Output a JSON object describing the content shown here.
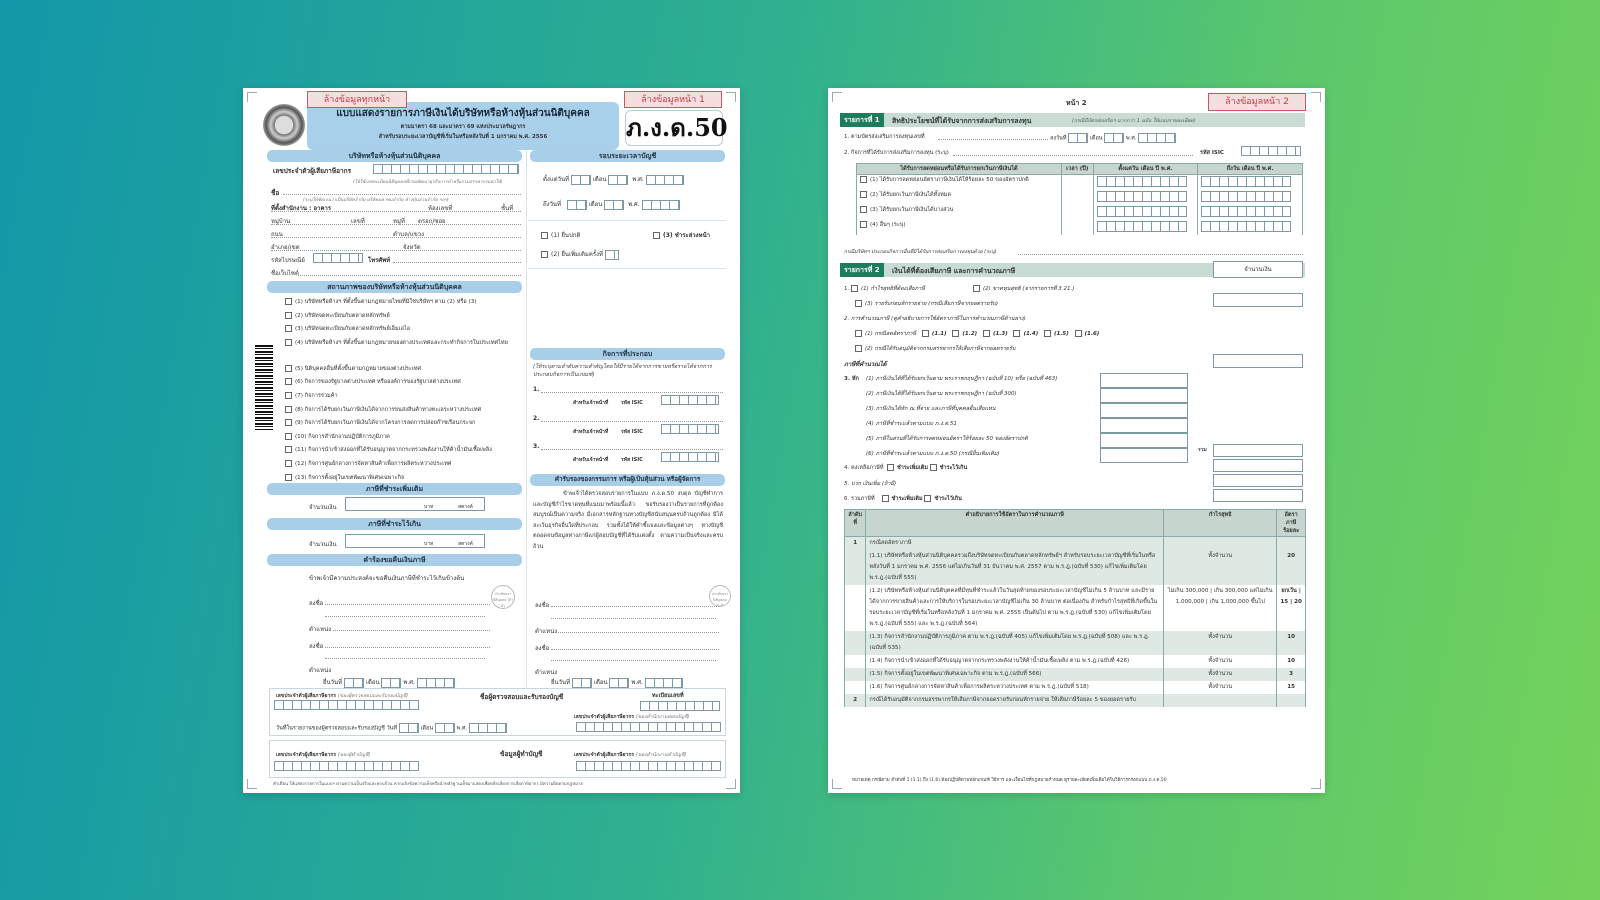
{
  "background": {
    "gradient_start": "#1397a9",
    "gradient_end": "#74d25a"
  },
  "page1": {
    "clear_all_button": "ล้างข้อมูลทุกหน้า",
    "clear_page_button": "ล้างข้อมูลหน้า 1",
    "title": "แบบแสดงรายการภาษีเงินได้บริษัทหรือห้างหุ้นส่วนนิติบุคคล",
    "subtitle": "ตามมาตรา 68 และมาตรา 69 แห่งประมวลรัษฎากร",
    "subtitle2": "สำหรับรอบระยะเวลาบัญชีที่เริ่มในหรือหลังวันที่ 1 มกราคม พ.ศ. 2556",
    "form_code": "ภ.ง.ด.50",
    "company": {
      "header": "บริษัทหรือห้างหุ้นส่วนนิติบุคคล",
      "tax_id_label": "เลขประจำตัวผู้เสียภาษีอากร",
      "tax_id_note": "(ให้ใช้เลขทะเบียนนิติบุคคลที่กรมพัฒนาธุรกิจการค้าหรือกรมสรรพากรออกให้)",
      "name_label": "ชื่อ",
      "name_note": "(ระบุให้ชัดเจนว่าเป็นบริษัทจำกัด บริษัทมหาชนจำกัด ห้างหุ้นส่วนจำกัด ฯลฯ)",
      "office_label": "ที่ตั้งสำนักงาน : อาคาร",
      "room_label": "ห้องเลขที่",
      "floor_label": "ชั้นที่",
      "village_label": "หมู่บ้าน",
      "house_no_label": "เลขที่",
      "moo_label": "หมู่ที่",
      "soi_label": "ตรอก/ซอย",
      "road_label": "ถนน",
      "subdistrict_label": "ตำบล/แขวง",
      "district_label": "อำเภอ/เขต",
      "province_label": "จังหวัด",
      "postcode_label": "รหัสไปรษณีย์",
      "phone_label": "โทรศัพท์",
      "website_label": "ชื่อเว็บไซต์"
    },
    "status": {
      "header": "สถานภาพของบริษัทหรือห้างหุ้นส่วนนิติบุคคล",
      "items": [
        "(1) บริษัทหรือห้างฯ ที่ตั้งขึ้นตามกฎหมายไทยที่มิใช่บริษัทฯ ตาม (2) หรือ (3)",
        "(2) บริษัทจดทะเบียนกับตลาดหลักทรัพย์",
        "(3) บริษัทจดทะเบียนกับตลาดหลักทรัพย์เอ็มเอไอ",
        "(4) บริษัทหรือห้างฯ ที่ตั้งขึ้นตามกฎหมายของต่างประเทศและกระทำกิจการในประเทศไทย",
        "(5) นิติบุคคลอื่นที่ตั้งขึ้นตามกฎหมายของต่างประเทศ",
        "(6) กิจการของรัฐบาลต่างประเทศ หรือองค์การของรัฐบาลต่างประเทศ",
        "(7) กิจการร่วมค้า",
        "(8) กิจการได้รับยกเว้นภาษีเงินได้จากการขนส่งสินค้าทางทะเลระหว่างประเทศ",
        "(9) กิจการได้รับยกเว้นภาษีเงินได้จากโครงการลดการปล่อยก๊าซเรือนกระจก",
        "(10) กิจการสำนักงานปฏิบัติการภูมิภาค",
        "(11) กิจการนำเข้าส่งออกที่ได้รับอนุญาตจากกระทรวงพลังงานให้ค้าน้ำมันเชื้อเพลิง",
        "(12) กิจการศูนย์กลางการจัดหาสินค้าเพื่อการผลิตระหว่างประเทศ",
        "(13) กิจการตั้งอยู่ในเขตพัฒนาพิเศษเฉพาะกิจ"
      ]
    },
    "additional_tax": {
      "header": "ภาษีที่ชำระเพิ่มเติม",
      "amount_label": "จำนวนเงิน",
      "baht": "บาท",
      "satang": "สตางค์"
    },
    "overpaid_tax": {
      "header": "ภาษีที่ชำระไว้เกิน",
      "amount_label": "จำนวนเงิน",
      "baht": "บาท",
      "satang": "สตางค์"
    },
    "refund": {
      "header": "คำร้องขอคืนเงินภาษี",
      "text": "ข้าพเจ้ามีความประสงค์จะขอคืนเงินภาษีที่ชำระไว้เกินข้างต้น",
      "sign_label": "ลงชื่อ",
      "position_label": "ตำแหน่ง",
      "seal_label": "ประทับตรานิติบุคคล (ถ้ามี)",
      "date_label": "ยื่นวันที่",
      "month_label": "เดือน",
      "year_label": "พ.ศ."
    },
    "period": {
      "header": "รอบระยะเวลาบัญชี",
      "from_label": "ตั้งแต่วันที่",
      "to_label": "ถึงวันที่",
      "month_label": "เดือน",
      "year_label": "พ.ศ."
    },
    "filing": {
      "normal": "(1) ยื่นปกติ",
      "prepaid": "(3) ชำระล่วงหน้า",
      "additional": "(2) ยื่นเพิ่มเติมครั้งที่"
    },
    "business": {
      "header": "กิจการที่ประกอบ",
      "note": "(ให้ระบุตามลำดับความสำคัญโดยให้มีรายได้จากการขายหรือรายได้จากการประกอบกิจการเป็นเกณฑ์)",
      "items": [
        "1.",
        "2.",
        "3."
      ],
      "officer_label": "สำหรับเจ้าหน้าที่",
      "isic_label": "รหัส ISIC"
    },
    "certification": {
      "header": "คำรับรองของกรรมการ หรือผู้เป็นหุ้นส่วน หรือผู้จัดการ",
      "text": "ข้าพเจ้าได้ตรวจสอบรายการในแบบ ภ.ง.ด.50 งบดุล บัญชีทำการ และบัญชีกำไรขาดทุนที่แนบมาพร้อมนี้แล้ว ขอรับรองว่าเป็นรายการที่ถูกต้องสมบูรณ์เป็นความจริง มีเอกสารหลักฐานทางบัญชีสนับสนุนครบถ้วนถูกต้อง มิได้ละเว้นธุรกิจอื่นใดที่ประกอบ รวมทั้งได้ให้คำชี้แจงและข้อมูลต่างๆ ทางบัญชี ตลอดจนข้อมูลทางภาษีแก่ผู้สอบบัญชีที่ได้รับแต่งตั้ง ตามความเป็นจริงและครบถ้วน",
      "sign_label": "ลงชื่อ",
      "position_label": "ตำแหน่ง",
      "seal_label": "ประทับตรานิติบุคคล (ถ้ามี)",
      "date_label": "ยื่นวันที่",
      "month_label": "เดือน",
      "year_label": "พ.ศ."
    },
    "auditor": {
      "tax_id_label": "เลขประจำตัวผู้เสียภาษีอากร",
      "tax_id_note": "(ของผู้ตรวจสอบและรับรองบัญชี)",
      "name_header": "ชื่อผู้ตรวจสอบและรับรองบัญชี",
      "reg_label": "ทะเบียนเลขที่",
      "office_tax_id_label": "เลขประจำตัวผู้เสียภาษีอากร",
      "office_note": "(ของสำนักงานสอบบัญชี)",
      "report_date_label": "วันที่ในรายงานของผู้ตรวจสอบและรับรองบัญชี วันที่",
      "month_label": "เดือน",
      "year_label": "พ.ศ."
    },
    "bookkeeper": {
      "tax_id_label": "เลขประจำตัวผู้เสียภาษีอากร",
      "tax_id_note": "(ของผู้ทำบัญชี)",
      "header": "ข้อมูลผู้ทำบัญชี",
      "office_tax_id_label": "เลขประจำตัวผู้เสียภาษีอากร",
      "office_note": "(ของสำนักงานทำบัญชี)"
    },
    "footnote": "คำเตือน ให้แสดงรายการในแบบฯ ตามความเป็นจริงและครบถ้วน หากแจ้งข้อความเท็จหรือนำหลักฐานเท็จมาแสดงเพื่อหลีกเลี่ยงการเสียภาษีอากร มีความผิดตามกฎหมาย"
  },
  "page2": {
    "page_label": "หน้า 2",
    "clear_page_button": "ล้างข้อมูลหน้า 2",
    "part1": {
      "tag": "รายการที่ 1",
      "title": "สิทธิประโยชน์ที่ได้รับจากการส่งเสริมการลงทุน",
      "note": "(กรณีมีบัตรส่งเสริมฯ มากกว่า 1 ฉบับ ให้แนบรายละเอียด)",
      "line1": "1. ตามบัตรส่งเสริมการลงทุนเลขที่",
      "line1_date": "ลงวันที่",
      "month_label": "เดือน",
      "year_label": "พ.ศ.",
      "line2": "2. กิจการที่ได้รับการส่งเสริมการลงทุน (ระบุ)",
      "isic_label": "รหัส ISIC",
      "table_headers": [
        "ได้รับการลดหย่อนหรือได้รับการยกเว้นภาษีเงินได้",
        "เวลา (ปี)",
        "ตั้งแต่วัน เดือน ปี พ.ศ.",
        "ถึงวัน เดือน ปี พ.ศ."
      ],
      "table_rows": [
        "(1) ได้รับการลดหย่อนอัตราภาษีเงินได้ให้ร้อยละ 50 ของอัตราปกติ",
        "(2) ได้รับยกเว้นภาษีเงินได้ทั้งหมด",
        "(3) ได้รับยกเว้นภาษีเงินได้บางส่วน",
        "(4) อื่นๆ (ระบุ)"
      ],
      "other_note": "กรณีบริษัทฯ ประกอบกิจการอื่นที่มิได้รับการส่งเสริมการลงทุนด้วย (ระบุ)"
    },
    "part2": {
      "tag": "รายการที่ 2",
      "title": "เงินได้ที่ต้องเสียภาษี และการคำนวณภาษี",
      "amount_header": "จำนวนเงิน",
      "item1": "1.",
      "item1_1": "(1) กำไรสุทธิที่ต้องเสียภาษี",
      "item1_2": "(2) ขาดทุนสุทธิ (จากรายการที่ 3 21.)",
      "item1_3": "(3) รายรับก่อนหักรายจ่าย (กรณีเสียภาษีจากยอดรายรับ)",
      "item2": "2. การคำนวณภาษี (ดูคำอธิบายการใช้อัตราภาษีในการคำนวณภาษีด้านล่าง)",
      "item2_1": "(1) กรณีลดอัตราภาษี",
      "item2_1_opts": [
        "(1.1)",
        "(1.2)",
        "(1.3)",
        "(1.4)",
        "(1.5)",
        "(1.6)"
      ],
      "item2_2": "(2) กรณีได้รับอนุมัติจากกรมสรรพากรให้เสียภาษีจากยอดรายรับ",
      "computed_tax": "ภาษีที่คำนวณได้",
      "item3_label": "3. หัก",
      "item3": [
        "(1) ภาษีเงินได้ที่ได้รับยกเว้นตาม พระราชกฤษฎีกา (ฉบับที่ 10) หรือ (ฉบับที่ 463)",
        "(2) ภาษีเงินได้ที่ได้รับยกเว้นตาม พระราชกฤษฎีกา (ฉบับที่ 300)",
        "(3) ภาษีเงินได้หัก ณ ที่จ่าย และภาษีที่บุคคลอื่นเสียแทน",
        "(4) ภาษีที่ชำระแล้วตามแบบ ภ.ง.ด.51",
        "(5) ภาษีในส่วนที่ได้รับการลดหย่อนอัตราให้ร้อยละ 50 ของอัตราปกติ",
        "(6) ภาษีที่ชำระแล้วตามแบบ ภ.ง.ด.50 (กรณียื่นเพิ่มเติม)"
      ],
      "total_label": "รวม",
      "item4": "4. คงเหลือภาษีที่",
      "item5": "5. บวก เงินเพิ่ม (ถ้ามี)",
      "item6": "6. รวมภาษีที่",
      "pay_more": "ชำระเพิ่มเติม",
      "overpaid": "ชำระไว้เกิน"
    },
    "rate_table": {
      "headers": [
        "ลำดับที่",
        "คำอธิบายการใช้อัตราในการคำนวณภาษี",
        "กำไรสุทธิ",
        "อัตราภาษี ร้อยละ"
      ],
      "rows": [
        {
          "no": "1",
          "desc": "กรณีลดอัตราภาษี",
          "profit": "",
          "rate": ""
        },
        {
          "no": "",
          "desc": "(1.1) บริษัทหรือห้างหุ้นส่วนนิติบุคคลรวมถึงบริษัทจดทะเบียนกับตลาดหลักทรัพย์ฯ สำหรับรอบระยะเวลาบัญชีที่เริ่มในหรือหลังวันที่ 1 มกราคม พ.ศ. 2556 แต่ไม่เกินวันที่ 31 ธันวาคม พ.ศ. 2557 ตาม พ.ร.ฎ.(ฉบับที่ 530) แก้ไขเพิ่มเติมโดย พ.ร.ฎ.(ฉบับที่ 555)",
          "profit": "ทั้งจำนวน",
          "rate": "20"
        },
        {
          "no": "",
          "desc": "(1.2) บริษัทหรือห้างหุ้นส่วนนิติบุคคลที่มีทุนที่ชำระแล้วในวันสุดท้ายของรอบระยะเวลาบัญชีไม่เกิน 5 ล้านบาท และมีรายได้จากการขายสินค้าและการให้บริการในรอบระยะเวลาบัญชีไม่เกิน 30 ล้านบาท ต่อเนื่องกัน สำหรับกำไรสุทธิที่เกิดขึ้นในรอบระยะเวลาบัญชีที่เริ่มในหรือหลังวันที่ 1 มกราคม พ.ศ. 2555 เป็นต้นไป ตาม พ.ร.ฎ.(ฉบับที่ 530) แก้ไขเพิ่มเติมโดย พ.ร.ฎ.(ฉบับที่ 555) และ พ.ร.ฎ.(ฉบับที่ 564)",
          "profit": "ไม่เกิน 300,000 | เกิน 300,000 แต่ไม่เกิน 1,000,000 | เกิน 1,000,000 ขึ้นไป",
          "rate": "ยกเว้น | 15 | 20"
        },
        {
          "no": "",
          "desc": "(1.3) กิจการสำนักงานปฏิบัติการภูมิภาค ตาม พ.ร.ฎ.(ฉบับที่ 405) แก้ไขเพิ่มเติมโดย พ.ร.ฎ.(ฉบับที่ 508) และ พ.ร.ฎ.(ฉบับที่ 535)",
          "profit": "ทั้งจำนวน",
          "rate": "10"
        },
        {
          "no": "",
          "desc": "(1.4) กิจการนำเข้าส่งออกที่ได้รับอนุญาตจากกระทรวงพลังงานให้ค้าน้ำมันเชื้อเพลิง ตาม พ.ร.ฎ.(ฉบับที่ 426)",
          "profit": "ทั้งจำนวน",
          "rate": "10"
        },
        {
          "no": "",
          "desc": "(1.5) กิจการตั้งอยู่ในเขตพัฒนาพิเศษเฉพาะกิจ ตาม พ.ร.ฎ.(ฉบับที่ 566)",
          "profit": "ทั้งจำนวน",
          "rate": "3"
        },
        {
          "no": "",
          "desc": "(1.6) กิจการศูนย์กลางการจัดหาสินค้าเพื่อการผลิตระหว่างประเทศ ตาม พ.ร.ฎ.(ฉบับที่ 518)",
          "profit": "ทั้งจำนวน",
          "rate": "15"
        },
        {
          "no": "2",
          "desc": "กรณีได้รับอนุมัติจากกรมสรรพากรให้เสียภาษีจากยอดรายรับก่อนหักรายจ่าย ให้เสียภาษีร้อยละ 5 ของยอดรายรับ",
          "profit": "",
          "rate": ""
        }
      ]
    },
    "footnote": "หมายเหตุ กรณีตาม ลำดับที่ 1 (1.1) ถึง (1.6) ต้องปฏิบัติตามหลักเกณฑ์ วิธีการ และเงื่อนไขที่กฎหมายกำหนด ดูรายละเอียดเพิ่มเติมได้ในวิธีการกรอกแบบ ภ.ง.ด.50"
  }
}
